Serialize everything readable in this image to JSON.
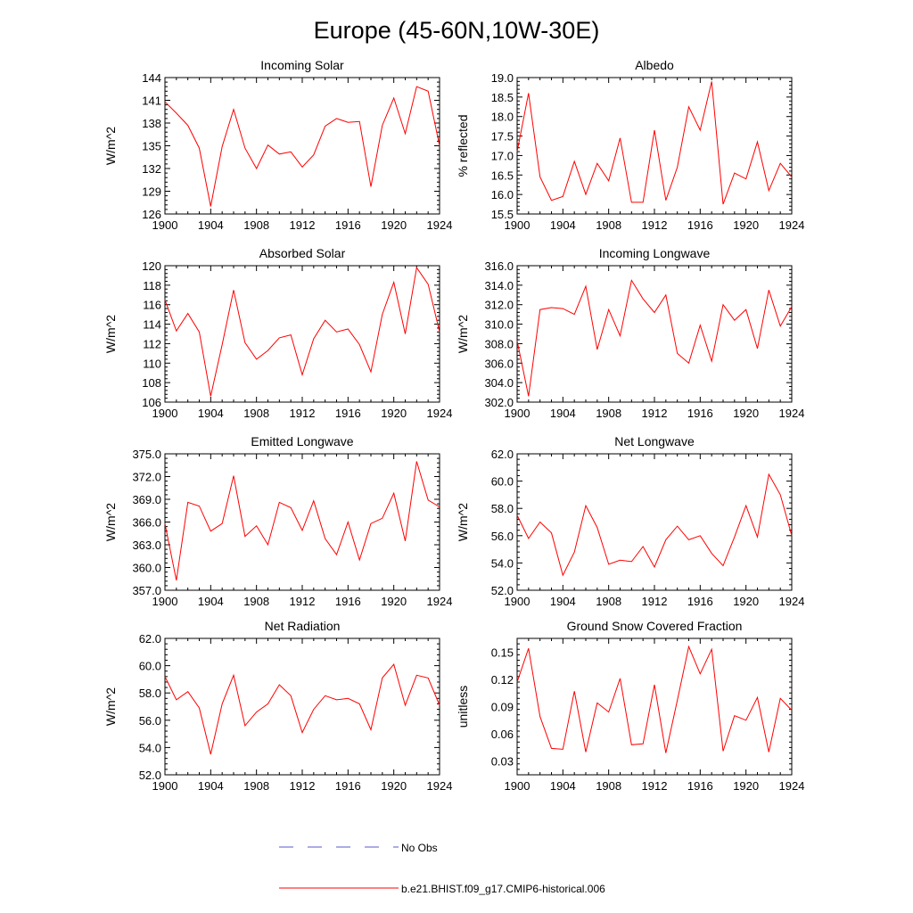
{
  "title": "Europe (45-60N,10W-30E)",
  "colors": {
    "model_line": "#ff0000",
    "obs_line": "#5a5acd",
    "axis": "#000000"
  },
  "legend": {
    "obs_label": "No Obs",
    "model_label": "b.e21.BHIST.f09_g17.CMIP6-historical.006"
  },
  "chart_data": [
    {
      "type": "line",
      "title": "Incoming Solar",
      "ylabel": "W/m^2",
      "xlim": [
        1900,
        1924
      ],
      "ylim": [
        126,
        144
      ],
      "xticks": [
        1900,
        1904,
        1908,
        1912,
        1916,
        1920,
        1924
      ],
      "xtick_labels": [
        "1900",
        "1904",
        "1908",
        "1912",
        "1916",
        "1920",
        "1924"
      ],
      "yticks": [
        126,
        129,
        132,
        135,
        138,
        141,
        144
      ],
      "ytick_labels": [
        "126",
        "129",
        "132",
        "135",
        "138",
        "141",
        "144"
      ],
      "x": [
        1900,
        1901,
        1902,
        1903,
        1904,
        1905,
        1906,
        1907,
        1908,
        1909,
        1910,
        1911,
        1912,
        1913,
        1914,
        1915,
        1916,
        1917,
        1918,
        1919,
        1920,
        1921,
        1922,
        1923,
        1924
      ],
      "series": [
        {
          "name": "b.e21.BHIST.f09_g17.CMIP6-historical.006",
          "values": [
            140.8,
            139.3,
            137.7,
            134.7,
            127.0,
            134.9,
            139.8,
            134.7,
            132.0,
            135.1,
            133.9,
            134.2,
            132.2,
            133.8,
            137.6,
            138.6,
            138.1,
            138.2,
            129.6,
            137.7,
            141.3,
            136.6,
            142.8,
            142.2,
            135.0
          ]
        }
      ]
    },
    {
      "type": "line",
      "title": "Albedo",
      "ylabel": "% reflected",
      "xlim": [
        1900,
        1924
      ],
      "ylim": [
        15.5,
        19.0
      ],
      "xticks": [
        1900,
        1904,
        1908,
        1912,
        1916,
        1920,
        1924
      ],
      "xtick_labels": [
        "1900",
        "1904",
        "1908",
        "1912",
        "1916",
        "1920",
        "1924"
      ],
      "yticks": [
        15.5,
        16.0,
        16.5,
        17.0,
        17.5,
        18.0,
        18.5,
        19.0
      ],
      "ytick_labels": [
        "15.5",
        "16.0",
        "16.5",
        "17.0",
        "17.5",
        "18.0",
        "18.5",
        "19.0"
      ],
      "x": [
        1900,
        1901,
        1902,
        1903,
        1904,
        1905,
        1906,
        1907,
        1908,
        1909,
        1910,
        1911,
        1912,
        1913,
        1914,
        1915,
        1916,
        1917,
        1918,
        1919,
        1920,
        1921,
        1922,
        1923,
        1924
      ],
      "series": [
        {
          "name": "b.e21.BHIST.f09_g17.CMIP6-historical.006",
          "values": [
            17.1,
            18.6,
            16.45,
            15.85,
            15.95,
            16.85,
            16.0,
            16.8,
            16.35,
            17.45,
            15.8,
            15.8,
            17.65,
            15.85,
            16.7,
            18.25,
            17.65,
            18.9,
            15.75,
            16.55,
            16.4,
            17.35,
            16.1,
            16.8,
            16.45
          ]
        }
      ]
    },
    {
      "type": "line",
      "title": "Absorbed Solar",
      "ylabel": "W/m^2",
      "xlim": [
        1900,
        1924
      ],
      "ylim": [
        106,
        120
      ],
      "xticks": [
        1900,
        1904,
        1908,
        1912,
        1916,
        1920,
        1924
      ],
      "xtick_labels": [
        "1900",
        "1904",
        "1908",
        "1912",
        "1916",
        "1920",
        "1924"
      ],
      "yticks": [
        106,
        108,
        110,
        112,
        114,
        116,
        118,
        120
      ],
      "ytick_labels": [
        "106",
        "108",
        "110",
        "112",
        "114",
        "116",
        "118",
        "120"
      ],
      "x": [
        1900,
        1901,
        1902,
        1903,
        1904,
        1905,
        1906,
        1907,
        1908,
        1909,
        1910,
        1911,
        1912,
        1913,
        1914,
        1915,
        1916,
        1917,
        1918,
        1919,
        1920,
        1921,
        1922,
        1923,
        1924
      ],
      "series": [
        {
          "name": "b.e21.BHIST.f09_g17.CMIP6-historical.006",
          "values": [
            116.5,
            113.3,
            115.1,
            113.2,
            106.6,
            111.9,
            117.5,
            112.1,
            110.4,
            111.3,
            112.6,
            112.9,
            108.8,
            112.5,
            114.4,
            113.2,
            113.5,
            111.9,
            109.1,
            115.0,
            118.3,
            113.0,
            119.8,
            118.1,
            113.2
          ]
        }
      ]
    },
    {
      "type": "line",
      "title": "Incoming Longwave",
      "ylabel": "W/m^2",
      "xlim": [
        1900,
        1924
      ],
      "ylim": [
        302.0,
        316.0
      ],
      "xticks": [
        1900,
        1904,
        1908,
        1912,
        1916,
        1920,
        1924
      ],
      "xtick_labels": [
        "1900",
        "1904",
        "1908",
        "1912",
        "1916",
        "1920",
        "1924"
      ],
      "yticks": [
        302.0,
        304.0,
        306.0,
        308.0,
        310.0,
        312.0,
        314.0,
        316.0
      ],
      "ytick_labels": [
        "302.0",
        "304.0",
        "306.0",
        "308.0",
        "310.0",
        "312.0",
        "314.0",
        "316.0"
      ],
      "x": [
        1900,
        1901,
        1902,
        1903,
        1904,
        1905,
        1906,
        1907,
        1908,
        1909,
        1910,
        1911,
        1912,
        1913,
        1914,
        1915,
        1916,
        1917,
        1918,
        1919,
        1920,
        1921,
        1922,
        1923,
        1924
      ],
      "series": [
        {
          "name": "b.e21.BHIST.f09_g17.CMIP6-historical.006",
          "values": [
            308.3,
            302.6,
            311.5,
            311.7,
            311.6,
            311.0,
            313.9,
            307.4,
            311.5,
            308.8,
            314.5,
            312.6,
            311.2,
            313.0,
            307.0,
            306.0,
            309.9,
            306.2,
            312.0,
            310.4,
            311.5,
            307.5,
            313.5,
            309.8,
            311.8
          ]
        }
      ]
    },
    {
      "type": "line",
      "title": "Emitted Longwave",
      "ylabel": "W/m^2",
      "xlim": [
        1900,
        1924
      ],
      "ylim": [
        357.0,
        375.0
      ],
      "xticks": [
        1900,
        1904,
        1908,
        1912,
        1916,
        1920,
        1924
      ],
      "xtick_labels": [
        "1900",
        "1904",
        "1908",
        "1912",
        "1916",
        "1920",
        "1924"
      ],
      "yticks": [
        357.0,
        360.0,
        363.0,
        366.0,
        369.0,
        372.0,
        375.0
      ],
      "ytick_labels": [
        "357.0",
        "360.0",
        "363.0",
        "366.0",
        "369.0",
        "372.0",
        "375.0"
      ],
      "x": [
        1900,
        1901,
        1902,
        1903,
        1904,
        1905,
        1906,
        1907,
        1908,
        1909,
        1910,
        1911,
        1912,
        1913,
        1914,
        1915,
        1916,
        1917,
        1918,
        1919,
        1920,
        1921,
        1922,
        1923,
        1924
      ],
      "series": [
        {
          "name": "b.e21.BHIST.f09_g17.CMIP6-historical.006",
          "values": [
            365.8,
            358.3,
            368.6,
            368.1,
            364.8,
            365.8,
            372.1,
            364.1,
            365.5,
            363.0,
            368.6,
            367.9,
            364.9,
            368.8,
            363.8,
            361.7,
            366.0,
            361.0,
            365.8,
            366.5,
            369.8,
            363.5,
            374.0,
            368.9,
            368.0
          ]
        }
      ]
    },
    {
      "type": "line",
      "title": "Net Longwave",
      "ylabel": "W/m^2",
      "xlim": [
        1900,
        1924
      ],
      "ylim": [
        52.0,
        62.0
      ],
      "xticks": [
        1900,
        1904,
        1908,
        1912,
        1916,
        1920,
        1924
      ],
      "xtick_labels": [
        "1900",
        "1904",
        "1908",
        "1912",
        "1916",
        "1920",
        "1924"
      ],
      "yticks": [
        52.0,
        54.0,
        56.0,
        58.0,
        60.0,
        62.0
      ],
      "ytick_labels": [
        "52.0",
        "54.0",
        "56.0",
        "58.0",
        "60.0",
        "62.0"
      ],
      "x": [
        1900,
        1901,
        1902,
        1903,
        1904,
        1905,
        1906,
        1907,
        1908,
        1909,
        1910,
        1911,
        1912,
        1913,
        1914,
        1915,
        1916,
        1917,
        1918,
        1919,
        1920,
        1921,
        1922,
        1923,
        1924
      ],
      "series": [
        {
          "name": "b.e21.BHIST.f09_g17.CMIP6-historical.006",
          "values": [
            57.5,
            55.8,
            57.0,
            56.2,
            53.1,
            54.8,
            58.2,
            56.6,
            53.9,
            54.2,
            54.1,
            55.2,
            53.7,
            55.7,
            56.7,
            55.7,
            56.0,
            54.7,
            53.8,
            55.9,
            58.2,
            55.9,
            60.5,
            59.0,
            56.0
          ]
        }
      ]
    },
    {
      "type": "line",
      "title": "Net Radiation",
      "ylabel": "W/m^2",
      "xlim": [
        1900,
        1924
      ],
      "ylim": [
        52.0,
        62.0
      ],
      "xticks": [
        1900,
        1904,
        1908,
        1912,
        1916,
        1920,
        1924
      ],
      "xtick_labels": [
        "1900",
        "1904",
        "1908",
        "1912",
        "1916",
        "1920",
        "1924"
      ],
      "yticks": [
        52.0,
        54.0,
        56.0,
        58.0,
        60.0,
        62.0
      ],
      "ytick_labels": [
        "52.0",
        "54.0",
        "56.0",
        "58.0",
        "60.0",
        "62.0"
      ],
      "x": [
        1900,
        1901,
        1902,
        1903,
        1904,
        1905,
        1906,
        1907,
        1908,
        1909,
        1910,
        1911,
        1912,
        1913,
        1914,
        1915,
        1916,
        1917,
        1918,
        1919,
        1920,
        1921,
        1922,
        1923,
        1924
      ],
      "series": [
        {
          "name": "b.e21.BHIST.f09_g17.CMIP6-historical.006",
          "values": [
            59.2,
            57.5,
            58.1,
            56.9,
            53.5,
            57.2,
            59.3,
            55.6,
            56.6,
            57.2,
            58.6,
            57.8,
            55.1,
            56.8,
            57.8,
            57.5,
            57.6,
            57.2,
            55.3,
            59.1,
            60.1,
            57.1,
            59.3,
            59.1,
            57.1
          ]
        }
      ]
    },
    {
      "type": "line",
      "title": "Ground Snow Covered Fraction",
      "ylabel": "unitless",
      "xlim": [
        1900,
        1924
      ],
      "ylim": [
        0.015,
        0.165
      ],
      "xticks": [
        1900,
        1904,
        1908,
        1912,
        1916,
        1920,
        1924
      ],
      "xtick_labels": [
        "1900",
        "1904",
        "1908",
        "1912",
        "1916",
        "1920",
        "1924"
      ],
      "yticks": [
        0.03,
        0.06,
        0.09,
        0.12,
        0.15
      ],
      "ytick_labels": [
        "0.03",
        "0.06",
        "0.09",
        "0.12",
        "0.15"
      ],
      "x": [
        1900,
        1901,
        1902,
        1903,
        1904,
        1905,
        1906,
        1907,
        1908,
        1909,
        1910,
        1911,
        1912,
        1913,
        1914,
        1915,
        1916,
        1917,
        1918,
        1919,
        1920,
        1921,
        1922,
        1923,
        1924
      ],
      "series": [
        {
          "name": "b.e21.BHIST.f09_g17.CMIP6-historical.006",
          "values": [
            0.117,
            0.154,
            0.079,
            0.044,
            0.043,
            0.107,
            0.04,
            0.094,
            0.084,
            0.121,
            0.048,
            0.049,
            0.114,
            0.039,
            0.097,
            0.156,
            0.126,
            0.153,
            0.041,
            0.08,
            0.075,
            0.1,
            0.04,
            0.099,
            0.086
          ]
        }
      ]
    }
  ]
}
